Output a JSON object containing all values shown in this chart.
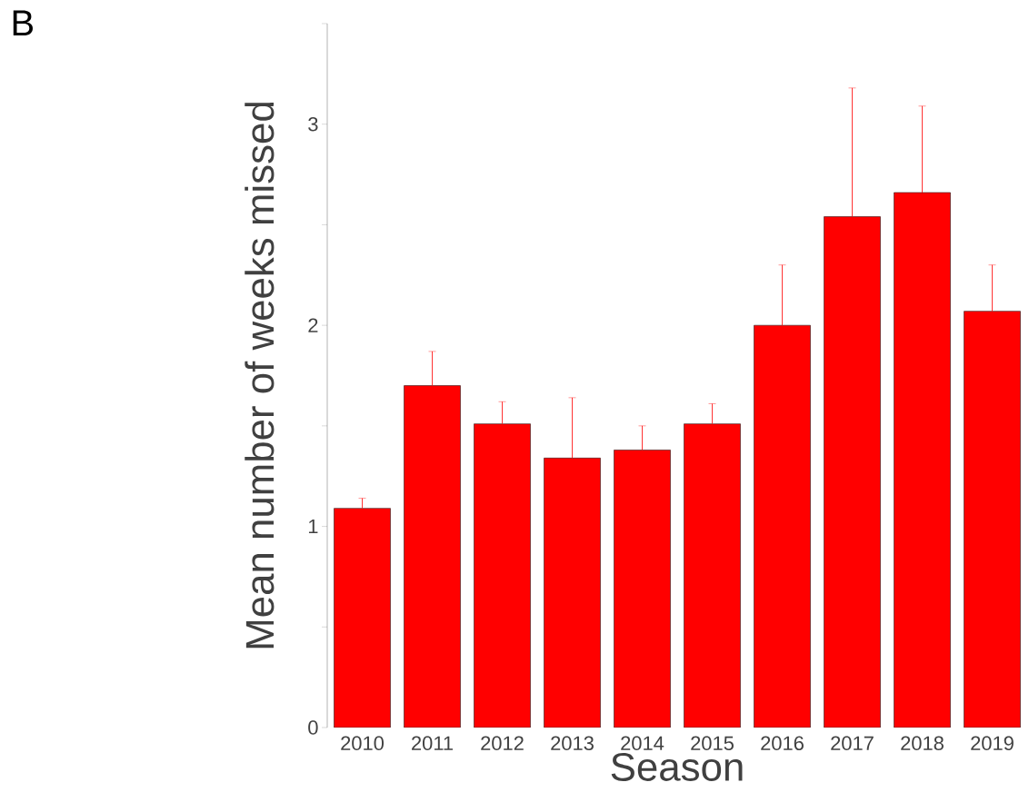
{
  "chart_data": {
    "type": "bar",
    "xlabel": "Season",
    "ylabel": "Mean number of weeks missed",
    "categories": [
      "2010",
      "2011",
      "2012",
      "2013",
      "2014",
      "2015",
      "2016",
      "2017",
      "2018",
      "2019"
    ],
    "values": [
      1.09,
      1.7,
      1.51,
      1.34,
      1.38,
      1.51,
      2.0,
      2.54,
      2.66,
      2.07
    ],
    "errors": [
      [
        1.09,
        1.14
      ],
      [
        1.7,
        1.87
      ],
      [
        1.51,
        1.62
      ],
      [
        1.34,
        1.64
      ],
      [
        1.38,
        1.5
      ],
      [
        1.51,
        1.61
      ],
      [
        2.0,
        2.3
      ],
      [
        2.54,
        3.18
      ],
      [
        2.66,
        3.09
      ],
      [
        2.07,
        2.3
      ]
    ],
    "color": "#ff0000",
    "ylim": [
      0,
      3.5
    ],
    "yticks": [
      0,
      {
        "value": 0.5,
        "label": null
      },
      1,
      {
        "value": 1.5,
        "label": null
      },
      2,
      {
        "value": 2.5,
        "label": null
      },
      3,
      {
        "value": 3.5,
        "label": null
      }
    ],
    "grid": false,
    "annotations": [
      "B"
    ]
  }
}
